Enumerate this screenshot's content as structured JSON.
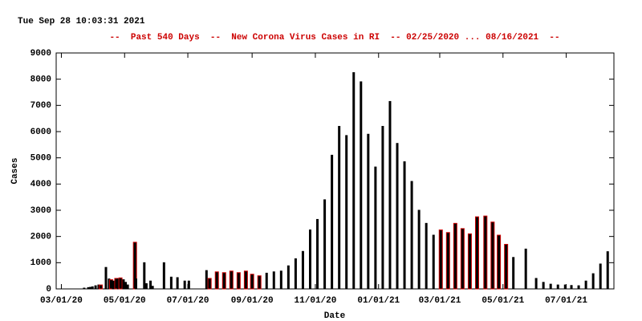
{
  "chart_data": {
    "type": "bar",
    "timestamp": "Tue Sep 28 10:03:31 2021",
    "title": "--  Past 540 Days  --  New Corona Virus Cases in RI  -- 02/25/2020 ... 08/16/2021  --",
    "xlabel": "Date",
    "ylabel": "Cases",
    "x": [
      "2020-03-23",
      "2020-03-27",
      "2020-03-29",
      "2020-03-31",
      "2020-04-03",
      "2020-04-06",
      "2020-04-08",
      "2020-04-13",
      "2020-04-16",
      "2020-04-18",
      "2020-04-20",
      "2020-04-23",
      "2020-04-25",
      "2020-04-27",
      "2020-04-30",
      "2020-05-02",
      "2020-05-04",
      "2020-05-11",
      "2020-05-12",
      "2020-05-20",
      "2020-05-22",
      "2020-05-26",
      "2020-05-28",
      "2020-06-08",
      "2020-06-15",
      "2020-06-21",
      "2020-06-28",
      "2020-07-02",
      "2020-07-19",
      "2020-07-22",
      "2020-07-29",
      "2020-08-05",
      "2020-08-12",
      "2020-08-19",
      "2020-08-26",
      "2020-09-01",
      "2020-09-08",
      "2020-09-15",
      "2020-09-22",
      "2020-09-29",
      "2020-10-06",
      "2020-10-13",
      "2020-10-20",
      "2020-10-27",
      "2020-11-03",
      "2020-11-10",
      "2020-11-17",
      "2020-11-24",
      "2020-12-01",
      "2020-12-08",
      "2020-12-15",
      "2020-12-22",
      "2020-12-29",
      "2021-01-05",
      "2021-01-12",
      "2021-01-19",
      "2021-01-26",
      "2021-02-02",
      "2021-02-09",
      "2021-02-16",
      "2021-02-23",
      "2021-03-02",
      "2021-03-09",
      "2021-03-16",
      "2021-03-23",
      "2021-03-30",
      "2021-04-06",
      "2021-04-14",
      "2021-04-21",
      "2021-04-27",
      "2021-05-04",
      "2021-05-11",
      "2021-05-23",
      "2021-06-02",
      "2021-06-09",
      "2021-06-16",
      "2021-06-23",
      "2021-06-30",
      "2021-07-06",
      "2021-07-13",
      "2021-07-20",
      "2021-07-27",
      "2021-08-03",
      "2021-08-10"
    ],
    "values": [
      30,
      50,
      60,
      80,
      120,
      150,
      150,
      820,
      380,
      350,
      300,
      400,
      380,
      420,
      350,
      250,
      150,
      1780,
      380,
      1000,
      200,
      300,
      100,
      1000,
      450,
      430,
      300,
      300,
      700,
      400,
      650,
      620,
      680,
      620,
      680,
      560,
      500,
      600,
      650,
      680,
      880,
      1150,
      1430,
      2250,
      2650,
      3400,
      5100,
      6200,
      5850,
      8250,
      7900,
      5900,
      4650,
      6200,
      7150,
      5550,
      4850,
      4100,
      3000,
      2500,
      2050,
      2250,
      2150,
      2500,
      2300,
      2100,
      2750,
      2780,
      2550,
      2050,
      1700,
      1200,
      1520,
      400,
      250,
      180,
      150,
      150,
      130,
      120,
      300,
      580,
      950,
      1420
    ],
    "colors": [
      "#000000",
      "#000000",
      "#000000",
      "#000000",
      "#000000",
      "#000000",
      "#cc0000",
      "#000000",
      "#000000",
      "#cc0000",
      "#000000",
      "#cc0000",
      "#000000",
      "#cc0000",
      "#000000",
      "#000000",
      "#000000",
      "#cc0000",
      "#000000",
      "#000000",
      "#000000",
      "#000000",
      "#000000",
      "#000000",
      "#000000",
      "#000000",
      "#000000",
      "#000000",
      "#000000",
      "#cc0000",
      "#cc0000",
      "#cc0000",
      "#cc0000",
      "#cc0000",
      "#cc0000",
      "#cc0000",
      "#cc0000",
      "#000000",
      "#000000",
      "#000000",
      "#000000",
      "#000000",
      "#000000",
      "#000000",
      "#000000",
      "#000000",
      "#000000",
      "#000000",
      "#000000",
      "#000000",
      "#000000",
      "#000000",
      "#000000",
      "#000000",
      "#000000",
      "#000000",
      "#000000",
      "#000000",
      "#000000",
      "#000000",
      "#000000",
      "#cc0000",
      "#cc0000",
      "#cc0000",
      "#cc0000",
      "#cc0000",
      "#cc0000",
      "#cc0000",
      "#cc0000",
      "#cc0000",
      "#cc0000",
      "#000000",
      "#000000",
      "#000000",
      "#000000",
      "#000000",
      "#000000",
      "#000000",
      "#000000",
      "#000000",
      "#000000",
      "#000000",
      "#000000",
      "#000000"
    ],
    "xlim": [
      "2020-02-25",
      "2021-08-16"
    ],
    "xticks": [
      {
        "value": "2020-03-01",
        "label": "03/01/20"
      },
      {
        "value": "2020-05-01",
        "label": "05/01/20"
      },
      {
        "value": "2020-07-01",
        "label": "07/01/20"
      },
      {
        "value": "2020-09-01",
        "label": "09/01/20"
      },
      {
        "value": "2020-11-01",
        "label": "11/01/20"
      },
      {
        "value": "2021-01-01",
        "label": "01/01/21"
      },
      {
        "value": "2021-03-01",
        "label": "03/01/21"
      },
      {
        "value": "2021-05-01",
        "label": "05/01/21"
      },
      {
        "value": "2021-07-01",
        "label": "07/01/21"
      }
    ],
    "ylim": [
      0,
      9000
    ],
    "yticks": [
      0,
      1000,
      2000,
      3000,
      4000,
      5000,
      6000,
      7000,
      8000,
      9000
    ]
  }
}
